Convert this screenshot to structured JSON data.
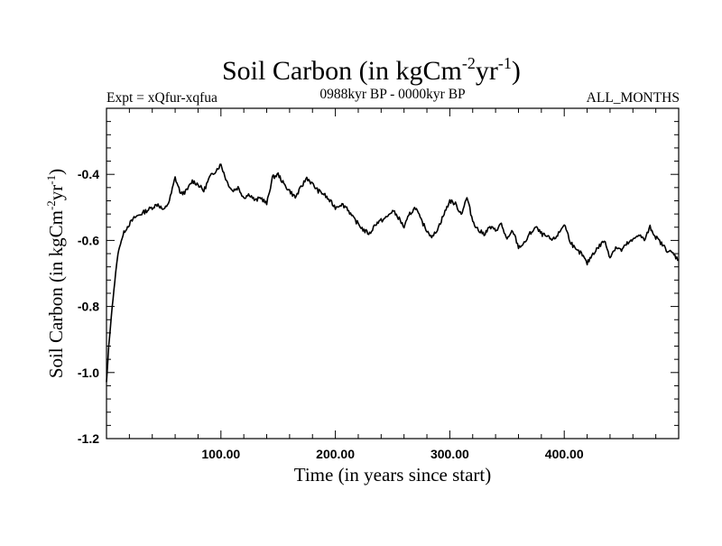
{
  "colors": {
    "line": "#000000",
    "background": "#ffffff"
  },
  "header": {
    "title_main": "Soil Carbon (in kgCm",
    "title_sup1": "-2",
    "title_mid": "yr",
    "title_sup2": "-1",
    "title_end": ")",
    "expt": "Expt = xQfur-xqfua",
    "period": "0988kyr BP - 0000kyr BP",
    "months": "ALL_MONTHS"
  },
  "axes": {
    "xlabel": "Time (in years since start)",
    "ylabel_main": "Soil Carbon (in kgCm",
    "ylabel_sup1": "-2",
    "ylabel_mid": "yr",
    "ylabel_sup2": "-1",
    "ylabel_end": ")"
  },
  "chart_data": {
    "type": "line",
    "title": "Soil Carbon (in kgCm-2yr-1)",
    "subtitle_left": "Expt = xQfur-xqfua",
    "subtitle_center": "0988kyr BP - 0000kyr BP",
    "subtitle_right": "ALL_MONTHS",
    "xlabel": "Time (in years since start)",
    "ylabel": "Soil Carbon (in kgCm-2yr-1)",
    "xlim": [
      0,
      500
    ],
    "ylim": [
      -1.2,
      -0.2
    ],
    "x_ticks": [
      100,
      200,
      300,
      400
    ],
    "x_tick_labels": [
      "100.00",
      "200.00",
      "300.00",
      "400.00"
    ],
    "y_ticks": [
      -1.2,
      -1.0,
      -0.8,
      -0.6,
      -0.4
    ],
    "y_tick_labels": [
      "-1.2",
      "-1.0",
      "-0.8",
      "-0.6",
      "-0.4"
    ],
    "grid": false,
    "series": [
      {
        "name": "Soil Carbon",
        "x": [
          0,
          2,
          5,
          8,
          10,
          13,
          16,
          20,
          25,
          30,
          35,
          40,
          45,
          50,
          55,
          60,
          65,
          70,
          75,
          80,
          85,
          90,
          95,
          100,
          105,
          110,
          115,
          120,
          125,
          130,
          135,
          140,
          145,
          150,
          155,
          160,
          165,
          170,
          175,
          180,
          185,
          190,
          195,
          200,
          205,
          210,
          215,
          220,
          225,
          230,
          235,
          240,
          245,
          250,
          255,
          260,
          265,
          270,
          275,
          280,
          285,
          290,
          295,
          300,
          305,
          310,
          315,
          320,
          325,
          330,
          335,
          340,
          345,
          350,
          355,
          360,
          365,
          370,
          375,
          380,
          385,
          390,
          395,
          400,
          405,
          410,
          415,
          420,
          425,
          430,
          435,
          440,
          445,
          450,
          455,
          460,
          465,
          470,
          475,
          480,
          485,
          490,
          495,
          500
        ],
        "values": [
          -1.03,
          -0.92,
          -0.8,
          -0.7,
          -0.64,
          -0.6,
          -0.57,
          -0.55,
          -0.53,
          -0.52,
          -0.51,
          -0.5,
          -0.49,
          -0.51,
          -0.48,
          -0.41,
          -0.46,
          -0.45,
          -0.42,
          -0.43,
          -0.45,
          -0.41,
          -0.39,
          -0.37,
          -0.42,
          -0.45,
          -0.44,
          -0.47,
          -0.46,
          -0.48,
          -0.47,
          -0.49,
          -0.41,
          -0.4,
          -0.43,
          -0.45,
          -0.47,
          -0.44,
          -0.41,
          -0.43,
          -0.45,
          -0.46,
          -0.48,
          -0.5,
          -0.49,
          -0.5,
          -0.53,
          -0.55,
          -0.57,
          -0.58,
          -0.55,
          -0.54,
          -0.53,
          -0.51,
          -0.53,
          -0.56,
          -0.52,
          -0.5,
          -0.54,
          -0.57,
          -0.59,
          -0.56,
          -0.52,
          -0.48,
          -0.49,
          -0.52,
          -0.47,
          -0.54,
          -0.57,
          -0.58,
          -0.56,
          -0.57,
          -0.55,
          -0.6,
          -0.57,
          -0.62,
          -0.61,
          -0.58,
          -0.56,
          -0.58,
          -0.59,
          -0.6,
          -0.58,
          -0.55,
          -0.6,
          -0.63,
          -0.64,
          -0.67,
          -0.64,
          -0.62,
          -0.6,
          -0.65,
          -0.62,
          -0.63,
          -0.61,
          -0.6,
          -0.58,
          -0.6,
          -0.56,
          -0.59,
          -0.61,
          -0.63,
          -0.64,
          -0.66
        ]
      }
    ]
  }
}
